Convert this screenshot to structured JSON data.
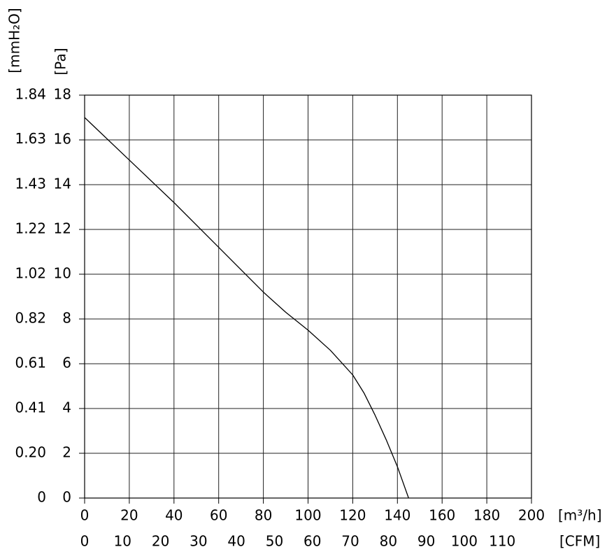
{
  "chart_data": {
    "type": "line",
    "x": [
      0,
      20,
      40,
      60,
      80,
      90,
      100,
      110,
      120,
      125,
      130,
      135,
      140,
      145
    ],
    "series": [
      {
        "color": "#000000",
        "values": [
          17.0,
          15.1,
          13.2,
          11.2,
          9.2,
          8.3,
          7.5,
          6.6,
          5.5,
          4.7,
          3.7,
          2.6,
          1.4,
          0
        ]
      }
    ],
    "xlim": [
      0,
      200
    ],
    "xticks": [
      0,
      20,
      40,
      60,
      80,
      100,
      120,
      140,
      160,
      180,
      200
    ],
    "xlabel": "[m³/h]",
    "x2lim": [
      0,
      117.7
    ],
    "x2ticks": [
      0,
      10,
      20,
      30,
      40,
      50,
      60,
      70,
      80,
      90,
      100,
      110
    ],
    "x2label": "[CFM]",
    "ylim": [
      0,
      18
    ],
    "yticks": [
      0,
      2,
      4,
      6,
      8,
      10,
      12,
      14,
      16,
      18
    ],
    "ylabel": "[Pa]",
    "y2lim": [
      0,
      1.835
    ],
    "y2ticks": [
      0,
      {
        "value": 0.204,
        "label": "0.20"
      },
      {
        "value": 0.408,
        "label": "0.41"
      },
      {
        "value": 0.612,
        "label": "0.61"
      },
      {
        "value": 0.816,
        "label": "0.82"
      },
      1.02,
      {
        "value": 1.224,
        "label": "1.22"
      },
      {
        "value": 1.428,
        "label": "1.43"
      },
      {
        "value": 1.632,
        "label": "1.63"
      },
      {
        "value": 1.835,
        "label": "1.84"
      }
    ],
    "y2label": "[mmH₂O]",
    "grid": true
  }
}
